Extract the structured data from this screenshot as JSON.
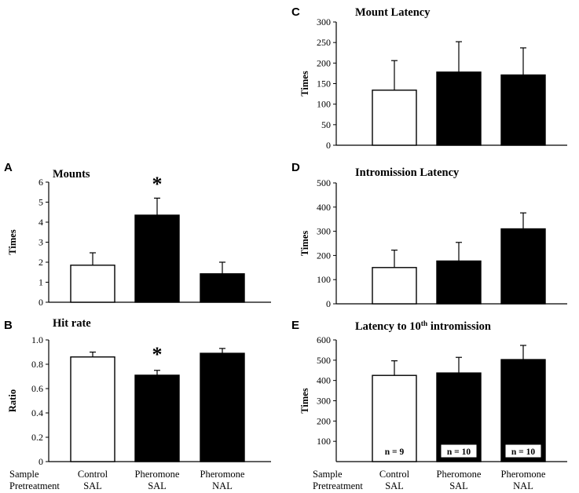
{
  "figure": {
    "row_labels": [
      "Sample",
      "Pretreatment"
    ],
    "left_groups": [
      {
        "sample": "Control",
        "pretreatment": "SAL"
      },
      {
        "sample": "Pheromone",
        "pretreatment": "SAL"
      },
      {
        "sample": "Pheromone",
        "pretreatment": "NAL"
      }
    ],
    "right_groups": [
      {
        "sample": "Control",
        "pretreatment": "SAL"
      },
      {
        "sample": "Pheromone",
        "pretreatment": "SAL"
      },
      {
        "sample": "Pheromone",
        "pretreatment": "NAL"
      }
    ],
    "colors": {
      "control": "#ffffff",
      "pheromone": "#000000",
      "outline": "#000000"
    }
  },
  "chart_data": [
    {
      "id": "A",
      "letter": "A",
      "type": "bar",
      "title": "Mounts",
      "categories": [
        "Control",
        "Pheromone",
        "Pheromone"
      ],
      "values": [
        1.85,
        4.35,
        1.42
      ],
      "errors": [
        0.62,
        0.85,
        0.58
      ],
      "fills": [
        "white",
        "black",
        "black"
      ],
      "ylabel": "Times",
      "ylim": [
        0,
        6
      ],
      "yticks": [
        0,
        1,
        2,
        3,
        4,
        5,
        6
      ],
      "tick_labels": [
        "0",
        "1",
        "2",
        "3",
        "4",
        "5",
        "6"
      ],
      "significance": [
        null,
        "*",
        null
      ]
    },
    {
      "id": "B",
      "letter": "B",
      "type": "bar",
      "title": "Hit rate",
      "categories": [
        "Control",
        "Pheromone",
        "Pheromone"
      ],
      "values": [
        0.86,
        0.71,
        0.89
      ],
      "errors": [
        0.04,
        0.04,
        0.04
      ],
      "fills": [
        "white",
        "black",
        "black"
      ],
      "ylabel": "Ratio",
      "ylim": [
        0,
        1
      ],
      "yticks": [
        0,
        0.2,
        0.4,
        0.6,
        0.8,
        1.0
      ],
      "tick_labels": [
        "0",
        "0.2",
        "0.4",
        "0.6",
        "0.8",
        "1.0"
      ],
      "significance": [
        null,
        "*",
        null
      ]
    },
    {
      "id": "C",
      "letter": "C",
      "type": "bar",
      "title": "Mount Latency",
      "categories": [
        "Control",
        "Pheromone",
        "Pheromone"
      ],
      "values": [
        134,
        178,
        171
      ],
      "errors": [
        72,
        74,
        66
      ],
      "fills": [
        "white",
        "black",
        "black"
      ],
      "ylabel": "Times",
      "ylim": [
        0,
        300
      ],
      "yticks": [
        0,
        50,
        100,
        150,
        200,
        250,
        300
      ],
      "tick_labels": [
        "0",
        "50",
        "100",
        "150",
        "200",
        "250",
        "300"
      ],
      "significance": [
        null,
        null,
        null
      ]
    },
    {
      "id": "D",
      "letter": "D",
      "type": "bar",
      "title": "Intromission Latency",
      "categories": [
        "Control",
        "Pheromone",
        "Pheromone"
      ],
      "values": [
        150,
        177,
        310
      ],
      "errors": [
        72,
        77,
        66
      ],
      "fills": [
        "white",
        "black",
        "black"
      ],
      "ylabel": "Times",
      "ylim": [
        0,
        500
      ],
      "yticks": [
        0,
        100,
        200,
        300,
        400,
        500
      ],
      "tick_labels": [
        "0",
        "100",
        "200",
        "300",
        "400",
        "500"
      ],
      "significance": [
        null,
        null,
        null
      ]
    },
    {
      "id": "E",
      "letter": "E",
      "type": "bar",
      "title": "Latency to 10",
      "title_sup": "th",
      "title_end": " intromission",
      "categories": [
        "Control",
        "Pheromone",
        "Pheromone"
      ],
      "values": [
        425,
        437,
        503
      ],
      "errors": [
        72,
        77,
        70
      ],
      "fills": [
        "white",
        "black",
        "black"
      ],
      "ylabel": "Times",
      "ylim": [
        0,
        600
      ],
      "yticks": [
        100,
        200,
        300,
        400,
        500,
        600
      ],
      "tick_labels": [
        "100",
        "200",
        "300",
        "400",
        "500",
        "600"
      ],
      "bar_labels": [
        "n = 9",
        "n = 10",
        "n = 10"
      ],
      "significance": [
        null,
        null,
        null
      ]
    }
  ]
}
